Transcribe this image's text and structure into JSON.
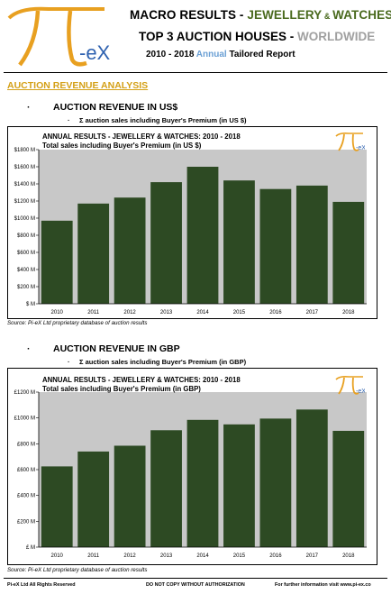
{
  "header": {
    "logo_text": "π-eX",
    "line1": {
      "part1": "MACRO RESULTS - ",
      "part2": "JEWELLERY",
      "part3": "&",
      "part4": "WATCHES"
    },
    "line2": {
      "part1": "TOP 3 AUCTION HOUSES - ",
      "part2": "WORLDWIDE"
    },
    "line3": {
      "part1": "2010 - 2018 ",
      "part2": "Annual",
      "part3": " Tailored Report"
    },
    "colors": {
      "brand_green": "#4a6a1e",
      "brand_orange": "#e8a020",
      "brand_blue": "#6a9fd4"
    }
  },
  "section_title": "AUCTION REVENUE ANALYSIS",
  "usd": {
    "bullet": "AUCTION REVENUE IN US$",
    "sub": "Σ auction sales including Buyer's Premium (in US $)",
    "source": "Source:  Pi-eX Ltd proprietary database of auction results"
  },
  "gbp": {
    "bullet": "AUCTION REVENUE IN GBP",
    "sub": "Σ auction sales including Buyer's Premium (in GBP)",
    "source": "Source:  Pi-eX Ltd proprietary database of auction results"
  },
  "chart_data": [
    {
      "type": "bar",
      "title": "ANNUAL RESULTS - JEWELLERY & WATCHES: 2010 - 2018",
      "subtitle": "Total sales including Buyer's Premium (in US $)",
      "categories": [
        "2010",
        "2011",
        "2012",
        "2013",
        "2014",
        "2015",
        "2016",
        "2017",
        "2018"
      ],
      "values": [
        970,
        1170,
        1240,
        1420,
        1600,
        1440,
        1340,
        1380,
        1190
      ],
      "ylim": [
        0,
        1800
      ],
      "yticks": [
        0,
        200,
        400,
        600,
        800,
        1000,
        1200,
        1400,
        1600,
        1800
      ],
      "ytick_labels": [
        "$ M",
        "$200 M",
        "$400 M",
        "$600 M",
        "$800 M",
        "$1000 M",
        "$1200 M",
        "$1400 M",
        "$1600 M",
        "$1800 M"
      ],
      "grid": false,
      "bar_color": "#2d4a23",
      "plot_bg": "#c8c8c8"
    },
    {
      "type": "bar",
      "title": "ANNUAL RESULTS - JEWELLERY & WATCHES: 2010 - 2018",
      "subtitle": "Total sales including Buyer's Premium (in GBP)",
      "categories": [
        "2010",
        "2011",
        "2012",
        "2013",
        "2014",
        "2015",
        "2016",
        "2017",
        "2018"
      ],
      "values": [
        625,
        740,
        785,
        905,
        985,
        950,
        995,
        1065,
        900
      ],
      "ylim": [
        0,
        1200
      ],
      "yticks": [
        0,
        200,
        400,
        600,
        800,
        1000,
        1200
      ],
      "ytick_labels": [
        "£ M",
        "£200 M",
        "£400 M",
        "£600 M",
        "£800 M",
        "£1000 M",
        "£1200 M"
      ],
      "grid": false,
      "bar_color": "#2d4a23",
      "plot_bg": "#c8c8c8"
    }
  ],
  "footer": {
    "left": "Pi-eX Ltd All Rights Reserved",
    "center": "DO NOT COPY WITHOUT AUTHORIZATION",
    "right": "For further information visit www.pi-ex.co"
  }
}
